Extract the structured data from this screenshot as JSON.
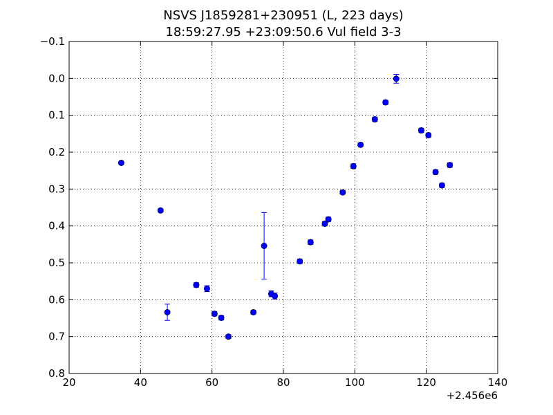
{
  "chart_data": {
    "type": "scatter",
    "title": "NSVS J1859281+230951 (L, 223 days)",
    "subtitle": "18:59:27.95 +23:09:50.6 Vul field 3-3",
    "xlabel": "",
    "ylabel": "",
    "xlim": [
      20,
      140
    ],
    "ylim": [
      0.8,
      -0.1
    ],
    "y_inverted": true,
    "grid": true,
    "grid_style": "dotted",
    "x_offset_label": "+2.456e6",
    "x_ticks": [
      "20",
      "40",
      "60",
      "80",
      "100",
      "120",
      "140"
    ],
    "y_ticks": [
      "−0.1",
      "0.0",
      "0.1",
      "0.2",
      "0.3",
      "0.4",
      "0.5",
      "0.6",
      "0.7",
      "0.8"
    ],
    "marker_color": "#0000ff",
    "series": [
      {
        "points": [
          {
            "x": 34.6,
            "y": 0.229,
            "err": 0.004
          },
          {
            "x": 45.6,
            "y": 0.358,
            "err": 0.004
          },
          {
            "x": 47.5,
            "y": 0.634,
            "err": 0.022
          },
          {
            "x": 55.6,
            "y": 0.56,
            "err": 0.006
          },
          {
            "x": 58.6,
            "y": 0.57,
            "err": 0.008
          },
          {
            "x": 60.7,
            "y": 0.638,
            "err": 0.006
          },
          {
            "x": 62.6,
            "y": 0.649,
            "err": 0.006
          },
          {
            "x": 64.6,
            "y": 0.7,
            "err": 0.005
          },
          {
            "x": 71.6,
            "y": 0.634,
            "err": 0.005
          },
          {
            "x": 74.6,
            "y": 0.454,
            "err": 0.09
          },
          {
            "x": 76.6,
            "y": 0.584,
            "err": 0.008
          },
          {
            "x": 77.6,
            "y": 0.59,
            "err": 0.008
          },
          {
            "x": 84.6,
            "y": 0.496,
            "err": 0.006
          },
          {
            "x": 87.6,
            "y": 0.444,
            "err": 0.006
          },
          {
            "x": 91.6,
            "y": 0.394,
            "err": 0.006
          },
          {
            "x": 92.6,
            "y": 0.382,
            "err": 0.006
          },
          {
            "x": 96.6,
            "y": 0.309,
            "err": 0.005
          },
          {
            "x": 99.6,
            "y": 0.238,
            "err": 0.006
          },
          {
            "x": 101.6,
            "y": 0.18,
            "err": 0.005
          },
          {
            "x": 105.6,
            "y": 0.111,
            "err": 0.006
          },
          {
            "x": 108.6,
            "y": 0.065,
            "err": 0.006
          },
          {
            "x": 111.6,
            "y": 0.001,
            "err": 0.012
          },
          {
            "x": 118.6,
            "y": 0.141,
            "err": 0.006
          },
          {
            "x": 120.6,
            "y": 0.154,
            "err": 0.006
          },
          {
            "x": 122.6,
            "y": 0.254,
            "err": 0.006
          },
          {
            "x": 124.4,
            "y": 0.29,
            "err": 0.006
          },
          {
            "x": 126.6,
            "y": 0.235,
            "err": 0.006
          }
        ]
      }
    ]
  }
}
